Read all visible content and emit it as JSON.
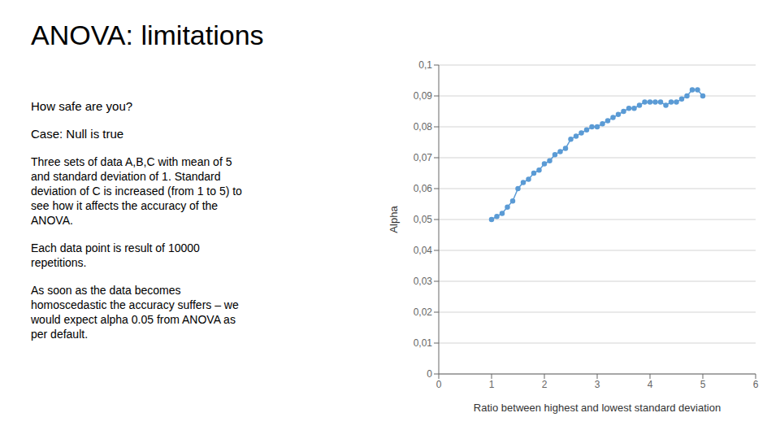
{
  "chart_data": {
    "type": "line",
    "title": "ANOVA: limitations",
    "annotations": [
      "How safe are you?",
      "Case: Null is true",
      "Three sets of data A,B,C with mean of 5\nand standard deviation of 1.  Standard\ndeviation of C is increased (from 1 to 5) to\nsee how it affects the accuracy of the\nANOVA.",
      "Each data point is result of 10000\nrepetitions.",
      "As soon as the data becomes\nhomoscedastic the accuracy suffers – we\nwould expect alpha 0.05 from ANOVA as\nper default."
    ],
    "x": [
      1.0,
      1.1,
      1.2,
      1.3,
      1.4,
      1.5,
      1.6,
      1.7,
      1.8,
      1.9,
      2.0,
      2.1,
      2.2,
      2.3,
      2.4,
      2.5,
      2.6,
      2.7,
      2.8,
      2.9,
      3.0,
      3.1,
      3.2,
      3.3,
      3.4,
      3.5,
      3.6,
      3.7,
      3.8,
      3.9,
      4.0,
      4.1,
      4.2,
      4.3,
      4.4,
      4.5,
      4.6,
      4.7,
      4.8,
      4.9,
      5.0
    ],
    "values": [
      0.05,
      0.051,
      0.052,
      0.054,
      0.056,
      0.06,
      0.062,
      0.063,
      0.065,
      0.066,
      0.068,
      0.069,
      0.071,
      0.072,
      0.073,
      0.076,
      0.077,
      0.078,
      0.079,
      0.08,
      0.08,
      0.081,
      0.082,
      0.083,
      0.084,
      0.085,
      0.086,
      0.086,
      0.087,
      0.088,
      0.088,
      0.088,
      0.088,
      0.087,
      0.088,
      0.088,
      0.089,
      0.09,
      0.092,
      0.092,
      0.09
    ],
    "color": "#5B9BD5",
    "marker": "circle",
    "xlabel": "Ratio between highest and lowest standard deviation",
    "ylabel": "Alpha",
    "xlim": [
      0,
      6
    ],
    "ylim": [
      0,
      0.1
    ],
    "xticks": [
      0,
      1,
      2,
      3,
      4,
      5,
      6
    ],
    "yticks": [
      0,
      {
        "value": 0.01,
        "label": "0,01"
      },
      {
        "value": 0.02,
        "label": "0,02"
      },
      {
        "value": 0.03,
        "label": "0,03"
      },
      {
        "value": 0.04,
        "label": "0,04"
      },
      {
        "value": 0.05,
        "label": "0,05"
      },
      {
        "value": 0.06,
        "label": "0,06"
      },
      {
        "value": 0.07,
        "label": "0,07"
      },
      {
        "value": 0.08,
        "label": "0,08"
      },
      {
        "value": 0.09,
        "label": "0,09"
      },
      {
        "value": 0.1,
        "label": "0,1"
      }
    ],
    "grid": true
  }
}
